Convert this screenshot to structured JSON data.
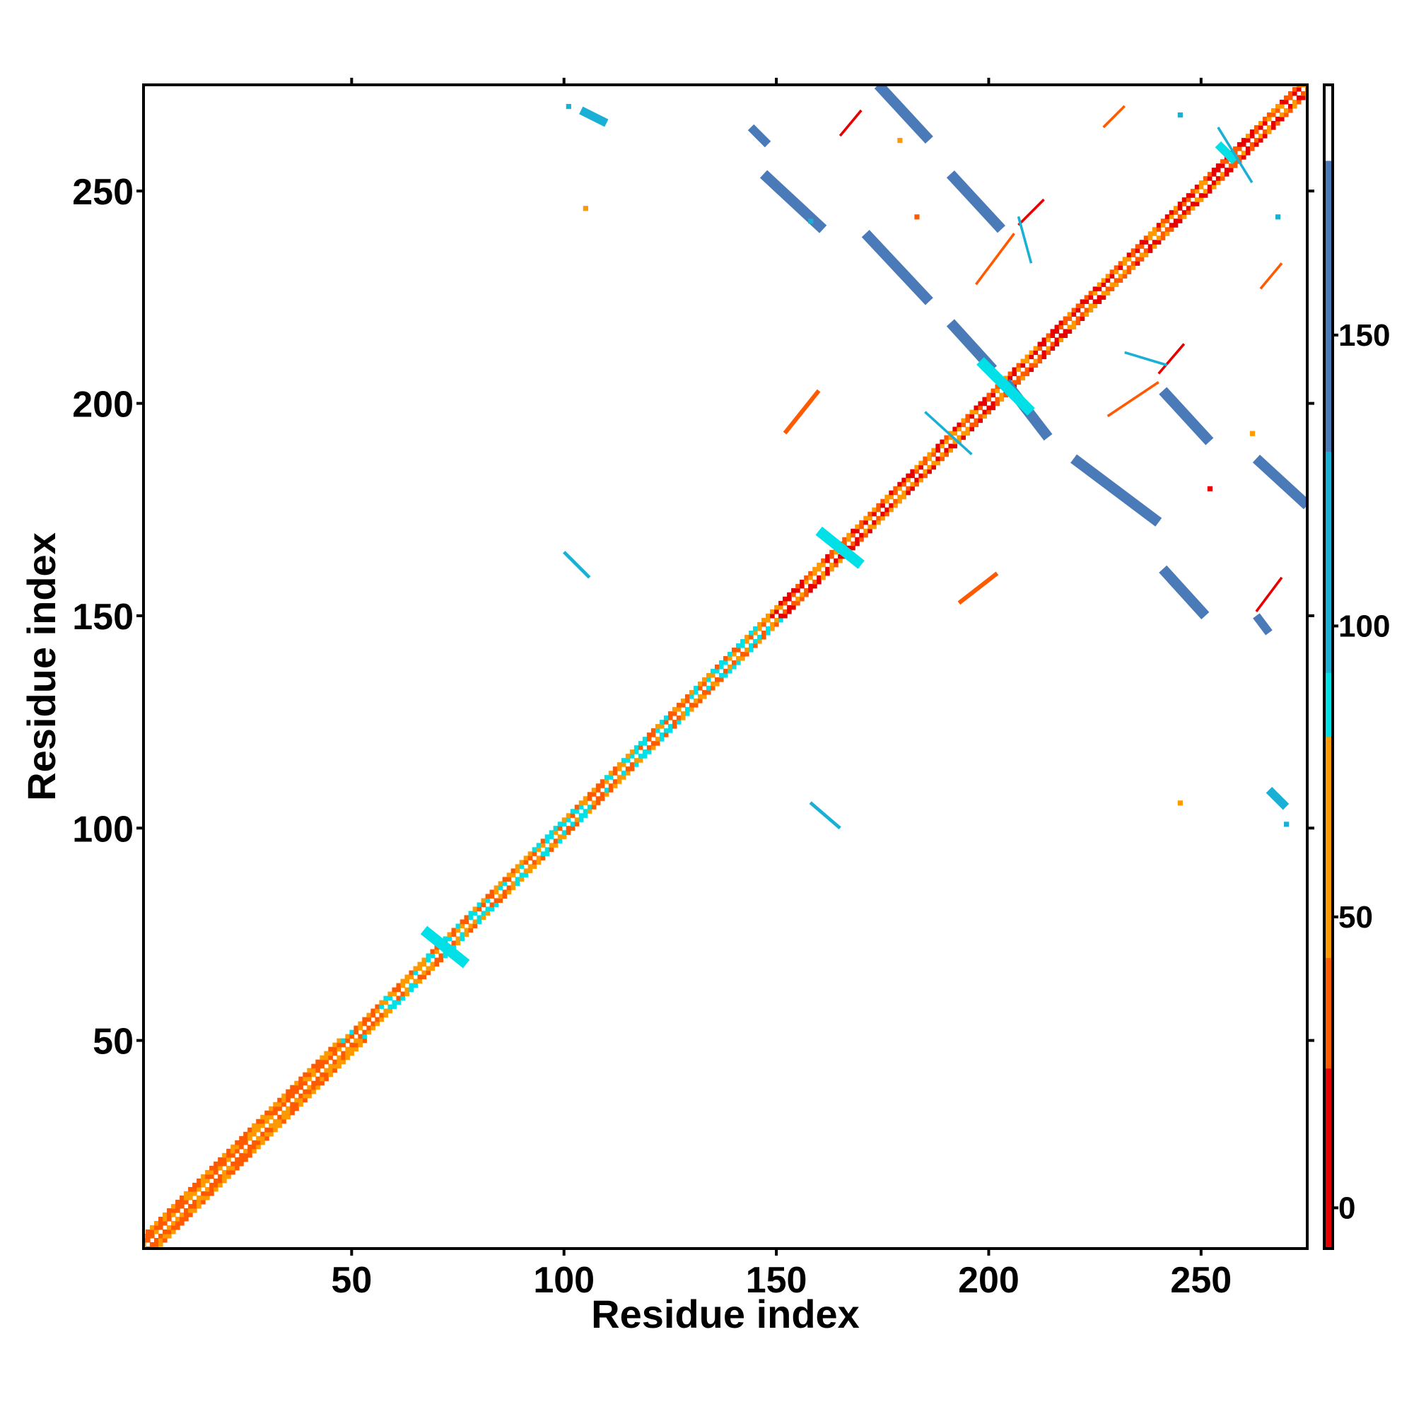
{
  "chart_data": {
    "type": "heatmap",
    "title": "",
    "xlabel": "Residue index",
    "ylabel": "Residue index",
    "xlim": [
      1,
      275
    ],
    "ylim": [
      1,
      275
    ],
    "x_ticks": [
      50,
      100,
      150,
      200,
      250
    ],
    "y_ticks": [
      50,
      100,
      150,
      200,
      250
    ],
    "grid": false,
    "colorbar": {
      "ticks": [
        0,
        50,
        100,
        150
      ],
      "range": [
        -7,
        193
      ],
      "bands": [
        {
          "from": -7,
          "to": 24,
          "color": "#e60000"
        },
        {
          "from": 24,
          "to": 43,
          "color": "#ff5a00"
        },
        {
          "from": 43,
          "to": 81,
          "color": "#ff9900"
        },
        {
          "from": 81,
          "to": 92,
          "color": "#00e0e6"
        },
        {
          "from": 92,
          "to": 130,
          "color": "#1ab0d6"
        },
        {
          "from": 130,
          "to": 180,
          "color": "#4a7ab8"
        },
        {
          "from": 180,
          "to": 193,
          "color": "#ffffff"
        }
      ]
    },
    "colors": {
      "red": "#e60000",
      "red_orange": "#ff5a00",
      "orange": "#ff9900",
      "cyan": "#00e0e6",
      "sky": "#1ab0d6",
      "steel": "#4a7ab8"
    },
    "diagonal_bands": [
      {
        "from": 1,
        "to": 50,
        "colors": [
          "red_orange",
          "orange"
        ],
        "width": 3
      },
      {
        "from": 50,
        "to": 100,
        "colors": [
          "orange",
          "red_orange",
          "cyan"
        ],
        "width": 2
      },
      {
        "from": 100,
        "to": 150,
        "colors": [
          "red_orange",
          "orange",
          "cyan"
        ],
        "width": 2
      },
      {
        "from": 150,
        "to": 200,
        "colors": [
          "red",
          "red_orange",
          "orange"
        ],
        "width": 2
      },
      {
        "from": 200,
        "to": 275,
        "colors": [
          "red",
          "orange",
          "red_orange"
        ],
        "width": 2
      }
    ],
    "contact_segments": [
      {
        "x1": 147,
        "y1": 254,
        "x2": 161,
        "y2": 241,
        "width": 2.5,
        "color": "steel"
      },
      {
        "x1": 174,
        "y1": 275,
        "x2": 186,
        "y2": 262,
        "width": 2.5,
        "color": "steel"
      },
      {
        "x1": 191,
        "y1": 254,
        "x2": 203,
        "y2": 241,
        "width": 2.5,
        "color": "steel"
      },
      {
        "x1": 171,
        "y1": 240,
        "x2": 186,
        "y2": 224,
        "width": 2.5,
        "color": "steel"
      },
      {
        "x1": 191,
        "y1": 219,
        "x2": 201,
        "y2": 208,
        "width": 2.5,
        "color": "steel"
      },
      {
        "x1": 204,
        "y1": 205,
        "x2": 214,
        "y2": 192,
        "width": 2.5,
        "color": "steel"
      },
      {
        "x1": 220,
        "y1": 187,
        "x2": 240,
        "y2": 172,
        "width": 2.5,
        "color": "steel"
      },
      {
        "x1": 241,
        "y1": 203,
        "x2": 252,
        "y2": 191,
        "width": 2.5,
        "color": "steel"
      },
      {
        "x1": 263,
        "y1": 187,
        "x2": 275,
        "y2": 176,
        "width": 2.5,
        "color": "steel"
      },
      {
        "x1": 241,
        "y1": 161,
        "x2": 251,
        "y2": 150,
        "width": 2.5,
        "color": "steel"
      },
      {
        "x1": 263,
        "y1": 150,
        "x2": 266,
        "y2": 146,
        "width": 2,
        "color": "steel"
      },
      {
        "x1": 144,
        "y1": 265,
        "x2": 148,
        "y2": 261,
        "width": 2,
        "color": "steel"
      },
      {
        "x1": 104,
        "y1": 269,
        "x2": 110,
        "y2": 266,
        "width": 2,
        "color": "sky"
      },
      {
        "x1": 266,
        "y1": 109,
        "x2": 270,
        "y2": 105,
        "width": 2,
        "color": "sky"
      },
      {
        "x1": 67,
        "y1": 76,
        "x2": 77,
        "y2": 68,
        "width": 2.5,
        "color": "cyan"
      },
      {
        "x1": 160,
        "y1": 170,
        "x2": 170,
        "y2": 162,
        "width": 2.5,
        "color": "cyan"
      },
      {
        "x1": 198,
        "y1": 210,
        "x2": 210,
        "y2": 198,
        "width": 2.5,
        "color": "cyan"
      },
      {
        "x1": 254,
        "y1": 261,
        "x2": 258,
        "y2": 257,
        "width": 2,
        "color": "cyan"
      },
      {
        "x1": 152,
        "y1": 193,
        "x2": 160,
        "y2": 203,
        "width": 1,
        "color": "red_orange"
      },
      {
        "x1": 193,
        "y1": 153,
        "x2": 202,
        "y2": 160,
        "width": 1,
        "color": "red_orange"
      },
      {
        "x1": 165,
        "y1": 263,
        "x2": 170,
        "y2": 269,
        "width": 0.6,
        "color": "red"
      },
      {
        "x1": 227,
        "y1": 265,
        "x2": 232,
        "y2": 270,
        "width": 0.6,
        "color": "red_orange"
      },
      {
        "x1": 264,
        "y1": 227,
        "x2": 269,
        "y2": 233,
        "width": 0.6,
        "color": "red_orange"
      },
      {
        "x1": 263,
        "y1": 151,
        "x2": 269,
        "y2": 159,
        "width": 0.6,
        "color": "red"
      },
      {
        "x1": 228,
        "y1": 197,
        "x2": 240,
        "y2": 205,
        "width": 0.6,
        "color": "red_orange"
      },
      {
        "x1": 240,
        "y1": 207,
        "x2": 246,
        "y2": 214,
        "width": 0.6,
        "color": "red"
      },
      {
        "x1": 197,
        "y1": 228,
        "x2": 206,
        "y2": 240,
        "width": 0.6,
        "color": "red_orange"
      },
      {
        "x1": 207,
        "y1": 242,
        "x2": 213,
        "y2": 248,
        "width": 0.6,
        "color": "red"
      },
      {
        "x1": 100,
        "y1": 165,
        "x2": 106,
        "y2": 159,
        "width": 0.8,
        "color": "sky"
      },
      {
        "x1": 158,
        "y1": 106,
        "x2": 165,
        "y2": 100,
        "width": 0.8,
        "color": "sky"
      },
      {
        "x1": 254,
        "y1": 265,
        "x2": 262,
        "y2": 252,
        "width": 0.6,
        "color": "sky"
      },
      {
        "x1": 232,
        "y1": 212,
        "x2": 242,
        "y2": 209,
        "width": 0.6,
        "color": "sky"
      },
      {
        "x1": 185,
        "y1": 198,
        "x2": 196,
        "y2": 188,
        "width": 0.6,
        "color": "sky"
      },
      {
        "x1": 207,
        "y1": 244,
        "x2": 210,
        "y2": 233,
        "width": 0.6,
        "color": "sky"
      }
    ],
    "contact_points": [
      {
        "x": 179,
        "y": 262,
        "color": "orange"
      },
      {
        "x": 183,
        "y": 244,
        "color": "red_orange"
      },
      {
        "x": 105,
        "y": 246,
        "color": "orange"
      },
      {
        "x": 245,
        "y": 106,
        "color": "orange"
      },
      {
        "x": 262,
        "y": 193,
        "color": "orange"
      },
      {
        "x": 252,
        "y": 180,
        "color": "red"
      },
      {
        "x": 101,
        "y": 270,
        "color": "sky"
      },
      {
        "x": 158,
        "y": 243,
        "color": "sky"
      },
      {
        "x": 270,
        "y": 101,
        "color": "sky"
      },
      {
        "x": 268,
        "y": 244,
        "color": "sky"
      },
      {
        "x": 245,
        "y": 268,
        "color": "sky"
      }
    ]
  }
}
